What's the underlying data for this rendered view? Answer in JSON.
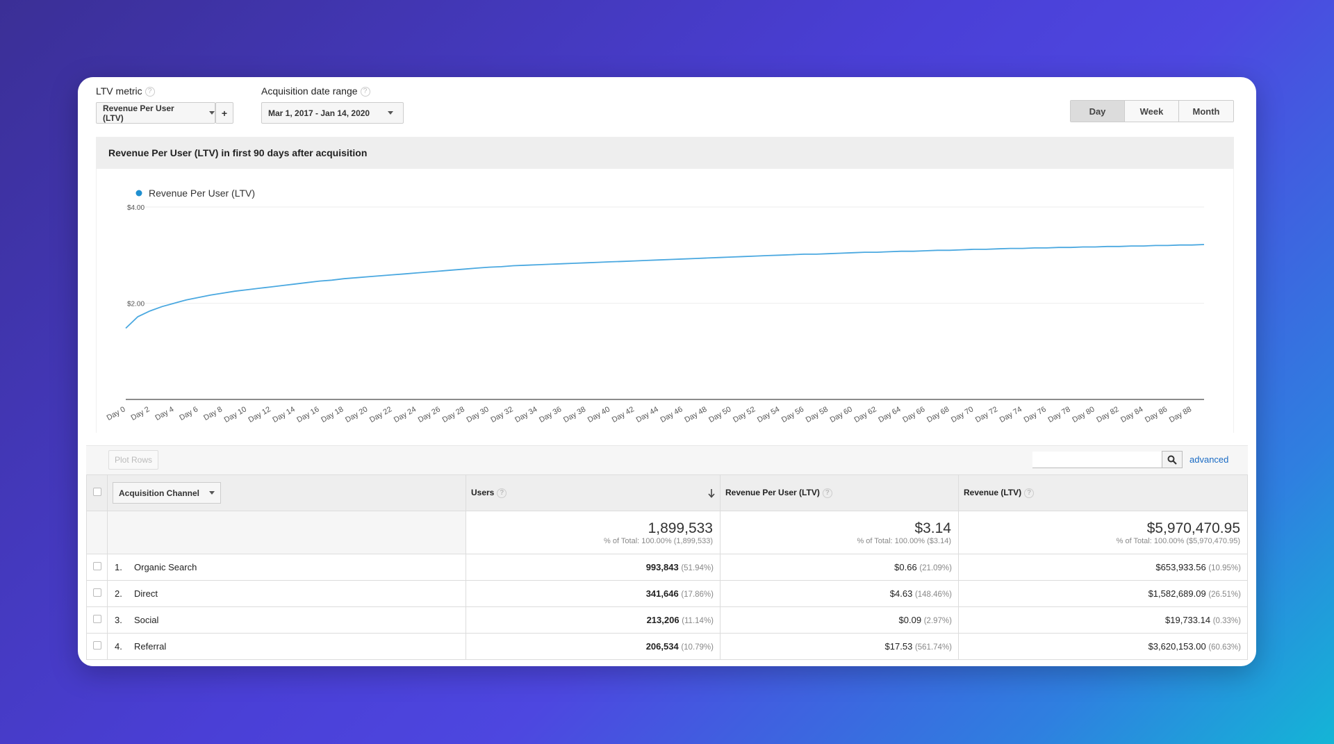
{
  "controls": {
    "ltv_metric_label": "LTV metric",
    "ltv_metric_value": "Revenue Per User (LTV)",
    "add_label": "+",
    "date_range_label": "Acquisition date range",
    "date_range_value": "Mar 1, 2017 - Jan 14, 2020",
    "help_glyph": "?",
    "granularity": [
      {
        "label": "Day",
        "active": true
      },
      {
        "label": "Week",
        "active": false
      },
      {
        "label": "Month",
        "active": false
      }
    ]
  },
  "chart_title": "Revenue Per User (LTV) in first 90 days after acquisition",
  "chart_data": {
    "type": "line",
    "title": "Revenue Per User (LTV) in first 90 days after acquisition",
    "series": [
      {
        "name": "Revenue Per User (LTV)",
        "color": "#4aa8e0",
        "values": [
          1.48,
          1.72,
          1.84,
          1.93,
          2.0,
          2.07,
          2.12,
          2.17,
          2.21,
          2.25,
          2.28,
          2.31,
          2.34,
          2.37,
          2.4,
          2.43,
          2.46,
          2.48,
          2.51,
          2.53,
          2.55,
          2.57,
          2.59,
          2.61,
          2.63,
          2.65,
          2.67,
          2.69,
          2.71,
          2.73,
          2.75,
          2.76,
          2.78,
          2.79,
          2.8,
          2.81,
          2.82,
          2.83,
          2.84,
          2.85,
          2.86,
          2.87,
          2.88,
          2.89,
          2.9,
          2.91,
          2.92,
          2.93,
          2.94,
          2.95,
          2.96,
          2.97,
          2.98,
          2.99,
          3.0,
          3.01,
          3.02,
          3.02,
          3.03,
          3.04,
          3.05,
          3.06,
          3.06,
          3.07,
          3.08,
          3.08,
          3.09,
          3.1,
          3.1,
          3.11,
          3.12,
          3.12,
          3.13,
          3.14,
          3.14,
          3.15,
          3.15,
          3.16,
          3.16,
          3.17,
          3.17,
          3.18,
          3.18,
          3.19,
          3.19,
          3.2,
          3.2,
          3.21,
          3.21,
          3.22
        ]
      }
    ],
    "x_tick_labels": [
      "Day 0",
      "Day 2",
      "Day 4",
      "Day 6",
      "Day 8",
      "Day 10",
      "Day 12",
      "Day 14",
      "Day 16",
      "Day 18",
      "Day 20",
      "Day 22",
      "Day 24",
      "Day 26",
      "Day 28",
      "Day 30",
      "Day 32",
      "Day 34",
      "Day 36",
      "Day 38",
      "Day 40",
      "Day 42",
      "Day 44",
      "Day 46",
      "Day 48",
      "Day 50",
      "Day 52",
      "Day 54",
      "Day 56",
      "Day 58",
      "Day 60",
      "Day 62",
      "Day 64",
      "Day 66",
      "Day 68",
      "Day 70",
      "Day 72",
      "Day 74",
      "Day 76",
      "Day 78",
      "Day 80",
      "Day 82",
      "Day 84",
      "Day 86",
      "Day 88"
    ],
    "y_tick_labels": [
      "$4.00",
      "$2.00"
    ],
    "y_ticks": [
      4,
      2
    ],
    "ylim": [
      0,
      4
    ],
    "legend_position": "top-left",
    "grid": true
  },
  "table_toolbar": {
    "plot_rows_label": "Plot Rows",
    "advanced_label": "advanced"
  },
  "table": {
    "columns": {
      "dimension": "Acquisition Channel",
      "users": "Users",
      "rpu": "Revenue Per User (LTV)",
      "revenue": "Revenue (LTV)"
    },
    "totals": {
      "users": "1,899,533",
      "users_sub": "% of Total: 100.00% (1,899,533)",
      "rpu": "$3.14",
      "rpu_sub": "% of Total: 100.00% ($3.14)",
      "revenue": "$5,970,470.95",
      "revenue_sub": "% of Total: 100.00% ($5,970,470.95)"
    },
    "rows": [
      {
        "index": "1.",
        "channel": "Organic Search",
        "users": "993,843",
        "users_pct": "(51.94%)",
        "rpu": "$0.66",
        "rpu_pct": "(21.09%)",
        "revenue": "$653,933.56",
        "revenue_pct": "(10.95%)"
      },
      {
        "index": "2.",
        "channel": "Direct",
        "users": "341,646",
        "users_pct": "(17.86%)",
        "rpu": "$4.63",
        "rpu_pct": "(148.46%)",
        "revenue": "$1,582,689.09",
        "revenue_pct": "(26.51%)"
      },
      {
        "index": "3.",
        "channel": "Social",
        "users": "213,206",
        "users_pct": "(11.14%)",
        "rpu": "$0.09",
        "rpu_pct": "(2.97%)",
        "revenue": "$19,733.14",
        "revenue_pct": "(0.33%)"
      },
      {
        "index": "4.",
        "channel": "Referral",
        "users": "206,534",
        "users_pct": "(10.79%)",
        "rpu": "$17.53",
        "rpu_pct": "(561.74%)",
        "revenue": "$3,620,153.00",
        "revenue_pct": "(60.63%)"
      }
    ]
  }
}
